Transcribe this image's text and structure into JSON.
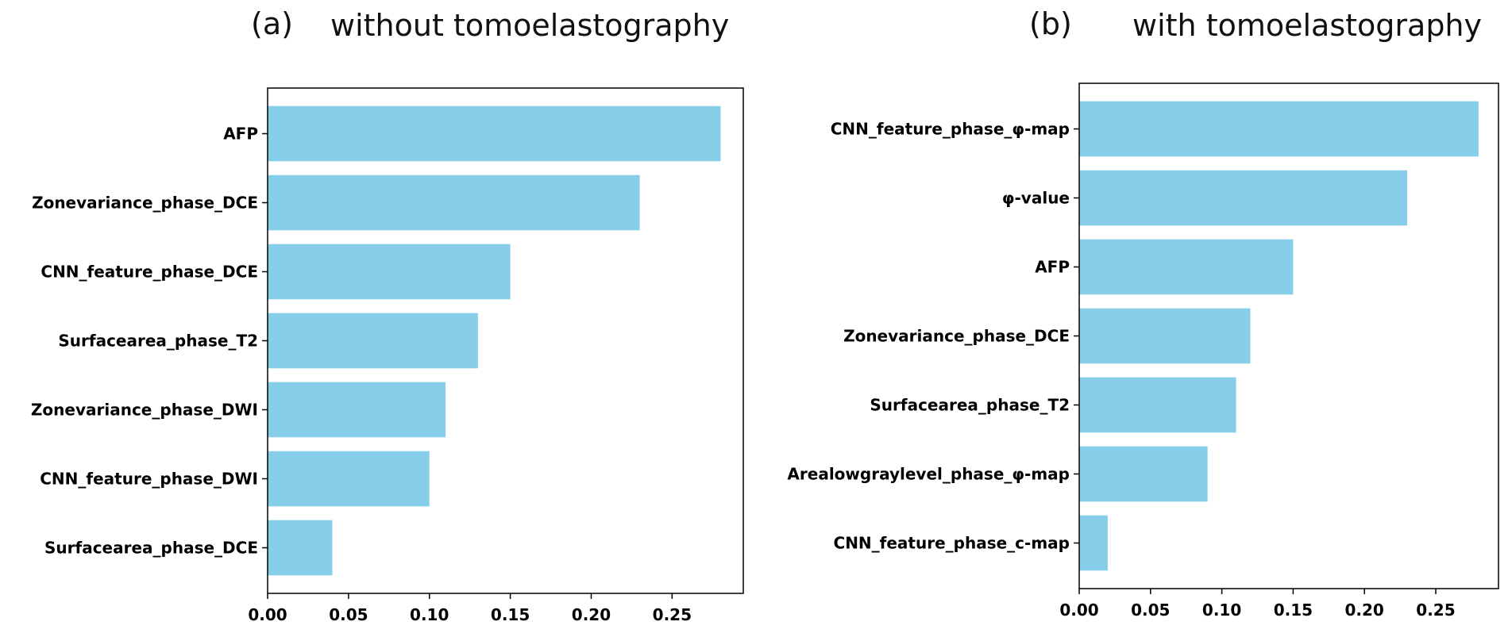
{
  "charts": [
    {
      "panel_label": "(a)",
      "title": "without tomoelastography",
      "chart_data": {
        "type": "bar",
        "orientation": "horizontal",
        "categories": [
          "AFP",
          "Zonevariance_phase_DCE",
          "CNN_feature_phase_DCE",
          "Surfacearea_phase_T2",
          "Zonevariance_phase_DWI",
          "CNN_feature_phase_DWI",
          "Surfacearea_phase_DCE"
        ],
        "values": [
          0.28,
          0.23,
          0.15,
          0.13,
          0.11,
          0.1,
          0.04
        ],
        "xlim": [
          0,
          0.294
        ],
        "xticks": [
          "0.00",
          "0.05",
          "0.10",
          "0.15",
          "0.20",
          "0.25"
        ],
        "xtick_values": [
          0,
          0.05,
          0.1,
          0.15,
          0.2,
          0.25
        ],
        "bar_color": "#87CEEB",
        "grid": false
      }
    },
    {
      "panel_label": "(b)",
      "title": "with tomoelastography",
      "chart_data": {
        "type": "bar",
        "orientation": "horizontal",
        "categories": [
          "CNN_feature_phase_φ-map",
          "φ-value",
          "AFP",
          "Zonevariance_phase_DCE",
          "Surfacearea_phase_T2",
          "Arealowgraylevel_phase_φ-map",
          "CNN_feature_phase_c-map"
        ],
        "values": [
          0.28,
          0.23,
          0.15,
          0.12,
          0.11,
          0.09,
          0.02
        ],
        "xlim": [
          0,
          0.294
        ],
        "xticks": [
          "0.00",
          "0.05",
          "0.10",
          "0.15",
          "0.20",
          "0.25"
        ],
        "xtick_values": [
          0,
          0.05,
          0.1,
          0.15,
          0.2,
          0.25
        ],
        "bar_color": "#87CEEB",
        "grid": false
      }
    }
  ]
}
